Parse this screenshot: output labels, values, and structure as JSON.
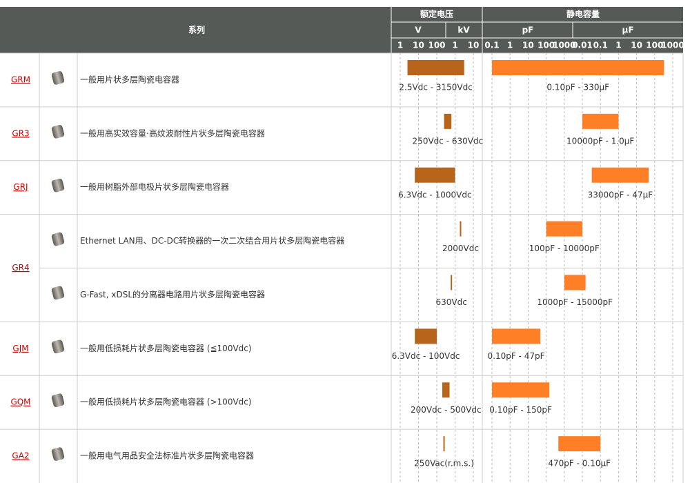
{
  "header": {
    "series": "系列",
    "voltage": "额定电压",
    "capacitance": "静电容量",
    "v_unit": "V",
    "kv_unit": "kV",
    "pf_unit": "pF",
    "uf_unit": "µF",
    "v_ticks": [
      1,
      10,
      100,
      {
        "value": 1000,
        "label": "1"
      },
      {
        "value": 10000,
        "label": "10"
      }
    ],
    "c_ticks": [
      0.1,
      1,
      10,
      100,
      1000,
      {
        "value": 10000,
        "label": "0.01"
      },
      {
        "value": 100000,
        "label": "0.1"
      },
      {
        "value": 1000000,
        "label": "1"
      },
      {
        "value": 10000000,
        "label": "10"
      },
      {
        "value": 100000000,
        "label": "100"
      },
      {
        "value": 1000000000,
        "label": "1000"
      }
    ]
  },
  "rows": [
    {
      "series": "GRM",
      "items": [
        {
          "description": "一般用片状多层陶瓷电容器",
          "v_range": [
            2.5,
            3150
          ],
          "v_label": "2.5Vdc - 3150Vdc",
          "c_range": [
            0.1,
            330000000
          ],
          "c_label": "0.10pF - 330µF"
        }
      ]
    },
    {
      "series": "GR3",
      "items": [
        {
          "description": "一般用高实效容量·高纹波耐性片状多层陶瓷电容器",
          "v_range": [
            250,
            630
          ],
          "v_label": "250Vdc - 630Vdc",
          "c_range": [
            10000,
            1000000
          ],
          "c_label": "10000pF - 1.0µF"
        }
      ]
    },
    {
      "series": "GRJ",
      "items": [
        {
          "description": "一般用树脂外部电极片状多层陶瓷电容器",
          "v_range": [
            6.3,
            1000
          ],
          "v_label": "6.3Vdc - 1000Vdc",
          "c_range": [
            33000,
            47000000
          ],
          "c_label": "33000pF - 47µF"
        }
      ]
    },
    {
      "series": "GR4",
      "items": [
        {
          "description": "Ethernet LAN用、DC-DC转换器的一次二次结合用片状多层陶瓷电容器",
          "v_range": [
            2000
          ],
          "v_label": "2000Vdc",
          "c_range": [
            100,
            10000
          ],
          "c_label": "100pF - 10000pF"
        },
        {
          "description": "G-Fast, xDSL的分离器电路用片状多层陶瓷电容器",
          "v_range": [
            630
          ],
          "v_label": "630Vdc",
          "c_range": [
            1000,
            15000
          ],
          "c_label": "1000pF - 15000pF"
        }
      ]
    },
    {
      "series": "GJM",
      "items": [
        {
          "description": "一般用低损耗片状多层陶瓷电容器 (≦100Vdc)",
          "v_range": [
            6.3,
            100
          ],
          "v_label": "6.3Vdc - 100Vdc",
          "c_range": [
            0.1,
            47
          ],
          "c_label": "0.10pF - 47pF"
        }
      ]
    },
    {
      "series": "GQM",
      "items": [
        {
          "description": "一般用低损耗片状多层陶瓷电容器 (>100Vdc)",
          "v_range": [
            200,
            500
          ],
          "v_label": "200Vdc - 500Vdc",
          "c_range": [
            0.1,
            150
          ],
          "c_label": "0.10pF - 150pF"
        }
      ]
    },
    {
      "series": "GA2",
      "items": [
        {
          "description": "一般用电气用品安全法标准片状多层陶瓷电容器",
          "v_range": [
            250
          ],
          "v_label": "250Vac(r.m.s.)",
          "c_range": [
            470,
            100000
          ],
          "c_label": "470pF - 0.10µF"
        }
      ]
    }
  ]
}
